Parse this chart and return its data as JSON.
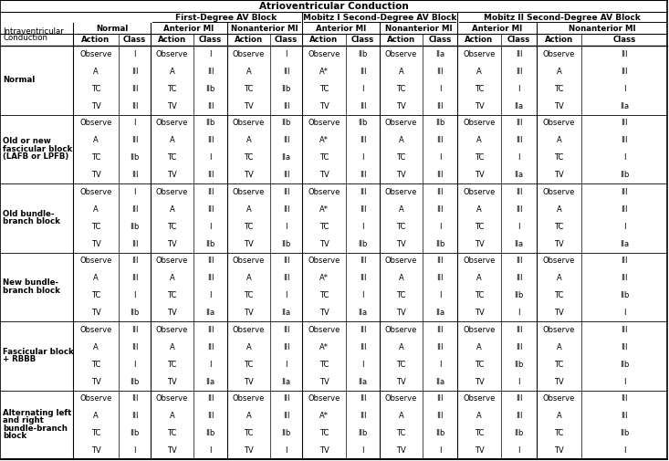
{
  "title": "Atrioventricular Conduction",
  "bg_color": "#ffffff",
  "row_groups": [
    {
      "label": [
        "Normal"
      ],
      "rows": [
        [
          "Observe",
          "I",
          "Observe",
          "I",
          "Observe",
          "I",
          "Observe",
          "IIb",
          "Observe",
          "IIa",
          "Observe",
          "III",
          "Observe",
          "III"
        ],
        [
          "A",
          "III",
          "A",
          "III",
          "A",
          "III",
          "A*",
          "III",
          "A",
          "III",
          "A",
          "III",
          "A",
          "III"
        ],
        [
          "TC",
          "III",
          "TC",
          "IIb",
          "TC",
          "IIb",
          "TC",
          "I",
          "TC",
          "I",
          "TC",
          "I",
          "TC",
          "I"
        ],
        [
          "TV",
          "III",
          "TV",
          "III",
          "TV",
          "III",
          "TV",
          "III",
          "TV",
          "III",
          "TV",
          "IIa",
          "TV",
          "IIa"
        ]
      ]
    },
    {
      "label": [
        "Old or new",
        "fascicular block",
        "(LAFB or LPFB)"
      ],
      "rows": [
        [
          "Observe",
          "I",
          "Observe",
          "IIb",
          "Observe",
          "IIb",
          "Observe",
          "IIb",
          "Observe",
          "IIb",
          "Observe",
          "III",
          "Observe",
          "III"
        ],
        [
          "A",
          "III",
          "A",
          "III",
          "A",
          "III",
          "A*",
          "III",
          "A",
          "III",
          "A",
          "III",
          "A",
          "III"
        ],
        [
          "TC",
          "IIb",
          "TC",
          "I",
          "TC",
          "IIa",
          "TC",
          "I",
          "TC",
          "I",
          "TC",
          "I",
          "TC",
          "I"
        ],
        [
          "TV",
          "III",
          "TV",
          "III",
          "TV",
          "III",
          "TV",
          "III",
          "TV",
          "III",
          "TV",
          "IIa",
          "TV",
          "IIb"
        ]
      ]
    },
    {
      "label": [
        "Old bundle-",
        "branch block"
      ],
      "rows": [
        [
          "Observe",
          "I",
          "Observe",
          "III",
          "Observe",
          "III",
          "Observe",
          "III",
          "Observe",
          "III",
          "Observe",
          "III",
          "Observe",
          "III"
        ],
        [
          "A",
          "III",
          "A",
          "III",
          "A",
          "III",
          "A*",
          "III",
          "A",
          "III",
          "A",
          "III",
          "A",
          "III"
        ],
        [
          "TC",
          "IIb",
          "TC",
          "I",
          "TC",
          "I",
          "TC",
          "I",
          "TC",
          "I",
          "TC",
          "I",
          "TC",
          "I"
        ],
        [
          "TV",
          "III",
          "TV",
          "IIb",
          "TV",
          "IIb",
          "TV",
          "IIb",
          "TV",
          "IIb",
          "TV",
          "IIa",
          "TV",
          "IIa"
        ]
      ]
    },
    {
      "label": [
        "New bundle-",
        "branch block"
      ],
      "rows": [
        [
          "Observe",
          "III",
          "Observe",
          "III",
          "Observe",
          "III",
          "Observe",
          "III",
          "Observe",
          "III",
          "Observe",
          "III",
          "Observe",
          "III"
        ],
        [
          "A",
          "III",
          "A",
          "III",
          "A",
          "III",
          "A*",
          "III",
          "A",
          "III",
          "A",
          "III",
          "A",
          "III"
        ],
        [
          "TC",
          "I",
          "TC",
          "I",
          "TC",
          "I",
          "TC",
          "I",
          "TC",
          "I",
          "TC",
          "IIb",
          "TC",
          "IIb"
        ],
        [
          "TV",
          "IIb",
          "TV",
          "IIa",
          "TV",
          "IIa",
          "TV",
          "IIa",
          "TV",
          "IIa",
          "TV",
          "I",
          "TV",
          "I"
        ]
      ]
    },
    {
      "label": [
        "Fascicular block",
        "+ RBBB"
      ],
      "rows": [
        [
          "Observe",
          "III",
          "Observe",
          "III",
          "Observe",
          "III",
          "Observe",
          "III",
          "Observe",
          "III",
          "Observe",
          "III",
          "Observe",
          "III"
        ],
        [
          "A",
          "III",
          "A",
          "III",
          "A",
          "III",
          "A*",
          "III",
          "A",
          "III",
          "A",
          "III",
          "A",
          "III"
        ],
        [
          "TC",
          "I",
          "TC",
          "I",
          "TC",
          "I",
          "TC",
          "I",
          "TC",
          "I",
          "TC",
          "IIb",
          "TC",
          "IIb"
        ],
        [
          "TV",
          "IIb",
          "TV",
          "IIa",
          "TV",
          "IIa",
          "TV",
          "IIa",
          "TV",
          "IIa",
          "TV",
          "I",
          "TV",
          "I"
        ]
      ]
    },
    {
      "label": [
        "Alternating left",
        "and right",
        "bundle-branch",
        "block"
      ],
      "rows": [
        [
          "Observe",
          "III",
          "Observe",
          "III",
          "Observe",
          "III",
          "Observe",
          "III",
          "Observe",
          "III",
          "Observe",
          "III",
          "Observe",
          "III"
        ],
        [
          "A",
          "III",
          "A",
          "III",
          "A",
          "III",
          "A*",
          "III",
          "A",
          "III",
          "A",
          "III",
          "A",
          "III"
        ],
        [
          "TC",
          "IIb",
          "TC",
          "IIb",
          "TC",
          "IIb",
          "TC",
          "IIb",
          "TC",
          "IIb",
          "TC",
          "IIb",
          "TC",
          "IIb"
        ],
        [
          "TV",
          "I",
          "TV",
          "I",
          "TV",
          "I",
          "TV",
          "I",
          "TV",
          "I",
          "TV",
          "I",
          "TV",
          "I"
        ]
      ]
    }
  ]
}
